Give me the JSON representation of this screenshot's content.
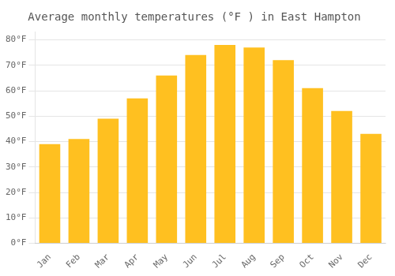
{
  "chart_data": {
    "type": "bar",
    "title": "Average monthly temperatures (°F ) in East Hampton",
    "categories": [
      "Jan",
      "Feb",
      "Mar",
      "Apr",
      "May",
      "Jun",
      "Jul",
      "Aug",
      "Sep",
      "Oct",
      "Nov",
      "Dec"
    ],
    "values": [
      39,
      41,
      49,
      57,
      66,
      74,
      78,
      77,
      72,
      61,
      52,
      43
    ],
    "color": "#FFC020",
    "ylim": [
      0,
      83
    ],
    "yticks": [
      {
        "value": 0,
        "label": "0°F"
      },
      {
        "value": 10,
        "label": "10°F"
      },
      {
        "value": 20,
        "label": "20°F"
      },
      {
        "value": 30,
        "label": "30°F"
      },
      {
        "value": 40,
        "label": "40°F"
      },
      {
        "value": 50,
        "label": "50°F"
      },
      {
        "value": 60,
        "label": "60°F"
      },
      {
        "value": 70,
        "label": "70°F"
      },
      {
        "value": 80,
        "label": "80°F"
      }
    ],
    "grid": true
  }
}
